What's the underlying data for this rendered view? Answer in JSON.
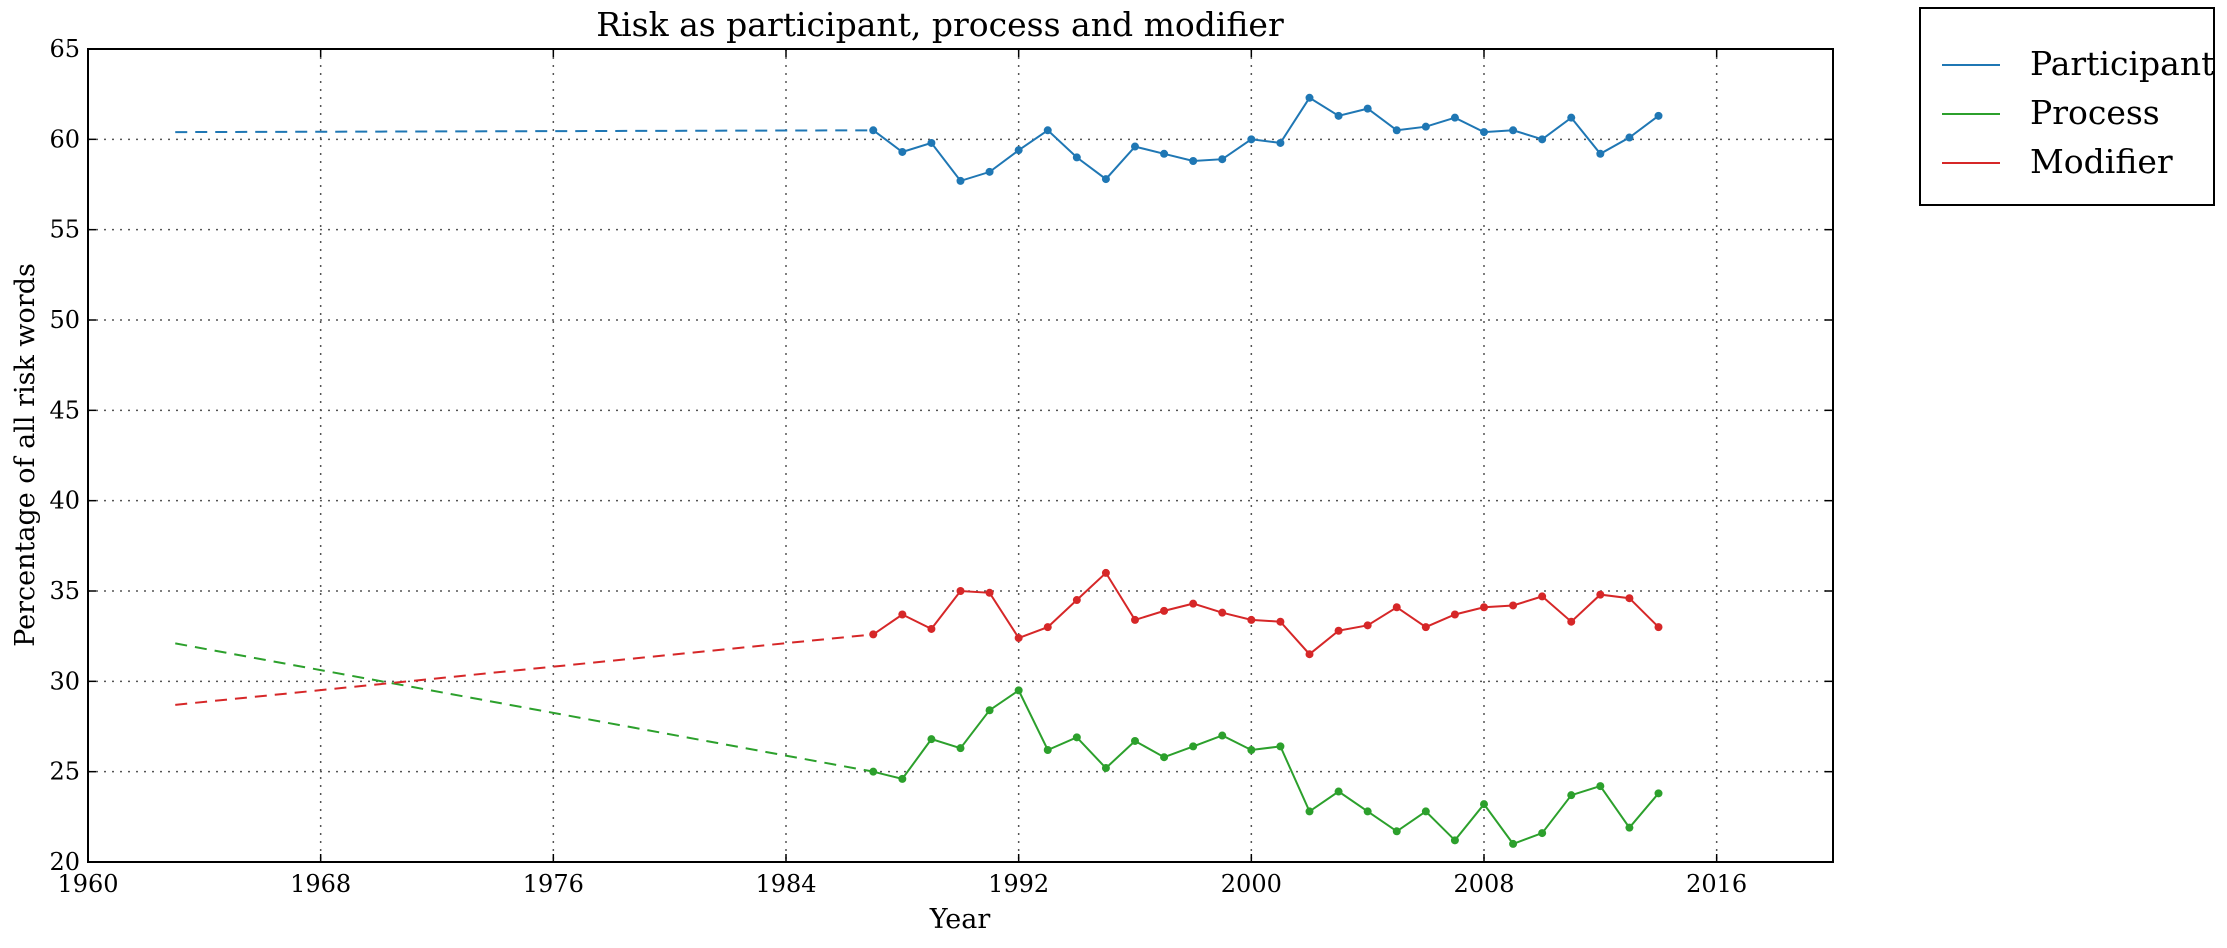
{
  "chart_data": {
    "type": "line",
    "title": "Risk as participant, process and modifier",
    "xlabel": "Year",
    "ylabel": "Percentage of all risk words",
    "xlim": [
      1960,
      2020
    ],
    "ylim": [
      20,
      65
    ],
    "xticks": [
      1960,
      1968,
      1976,
      1984,
      1992,
      2000,
      2008,
      2016
    ],
    "yticks": [
      20,
      25,
      30,
      35,
      40,
      45,
      50,
      55,
      60,
      65
    ],
    "grid": true,
    "legend_position": "outside-top-right",
    "series": [
      {
        "name": "Participant",
        "color": "#1f77b4",
        "extrapolation": {
          "x": [
            1963,
            1987
          ],
          "y": [
            60.4,
            60.5
          ]
        },
        "x": [
          1987,
          1988,
          1989,
          1990,
          1991,
          1992,
          1993,
          1994,
          1995,
          1996,
          1997,
          1998,
          1999,
          2000,
          2001,
          2002,
          2003,
          2004,
          2005,
          2006,
          2007,
          2008,
          2009,
          2010,
          2011,
          2012,
          2013,
          2014
        ],
        "y": [
          60.5,
          59.3,
          59.8,
          57.7,
          58.2,
          59.4,
          60.5,
          59.0,
          57.8,
          59.6,
          59.2,
          58.8,
          58.9,
          60.0,
          59.8,
          62.3,
          61.3,
          61.7,
          60.5,
          60.7,
          61.2,
          60.4,
          60.5,
          60.0,
          61.2,
          59.2,
          60.1,
          61.3
        ]
      },
      {
        "name": "Process",
        "color": "#2ca02c",
        "extrapolation": {
          "x": [
            1963,
            1987
          ],
          "y": [
            32.1,
            25.0
          ]
        },
        "x": [
          1987,
          1988,
          1989,
          1990,
          1991,
          1992,
          1993,
          1994,
          1995,
          1996,
          1997,
          1998,
          1999,
          2000,
          2001,
          2002,
          2003,
          2004,
          2005,
          2006,
          2007,
          2008,
          2009,
          2010,
          2011,
          2012,
          2013,
          2014
        ],
        "y": [
          25.0,
          24.6,
          26.8,
          26.3,
          28.4,
          29.5,
          26.2,
          26.9,
          25.2,
          26.7,
          25.8,
          26.4,
          27.0,
          26.2,
          26.4,
          22.8,
          23.9,
          22.8,
          21.7,
          22.8,
          21.2,
          23.2,
          21.0,
          21.6,
          23.7,
          24.2,
          21.9,
          23.8
        ]
      },
      {
        "name": "Modifier",
        "color": "#d62728",
        "extrapolation": {
          "x": [
            1963,
            1987
          ],
          "y": [
            28.7,
            32.6
          ]
        },
        "x": [
          1987,
          1988,
          1989,
          1990,
          1991,
          1992,
          1993,
          1994,
          1995,
          1996,
          1997,
          1998,
          1999,
          2000,
          2001,
          2002,
          2003,
          2004,
          2005,
          2006,
          2007,
          2008,
          2009,
          2010,
          2011,
          2012,
          2013,
          2014
        ],
        "y": [
          32.6,
          33.7,
          32.9,
          35.0,
          34.9,
          32.4,
          33.0,
          34.5,
          36.0,
          33.4,
          33.9,
          34.3,
          33.8,
          33.4,
          33.3,
          31.5,
          32.8,
          33.1,
          34.1,
          33.0,
          33.7,
          34.1,
          34.2,
          34.7,
          33.3,
          34.8,
          34.6,
          33.0
        ]
      }
    ]
  }
}
